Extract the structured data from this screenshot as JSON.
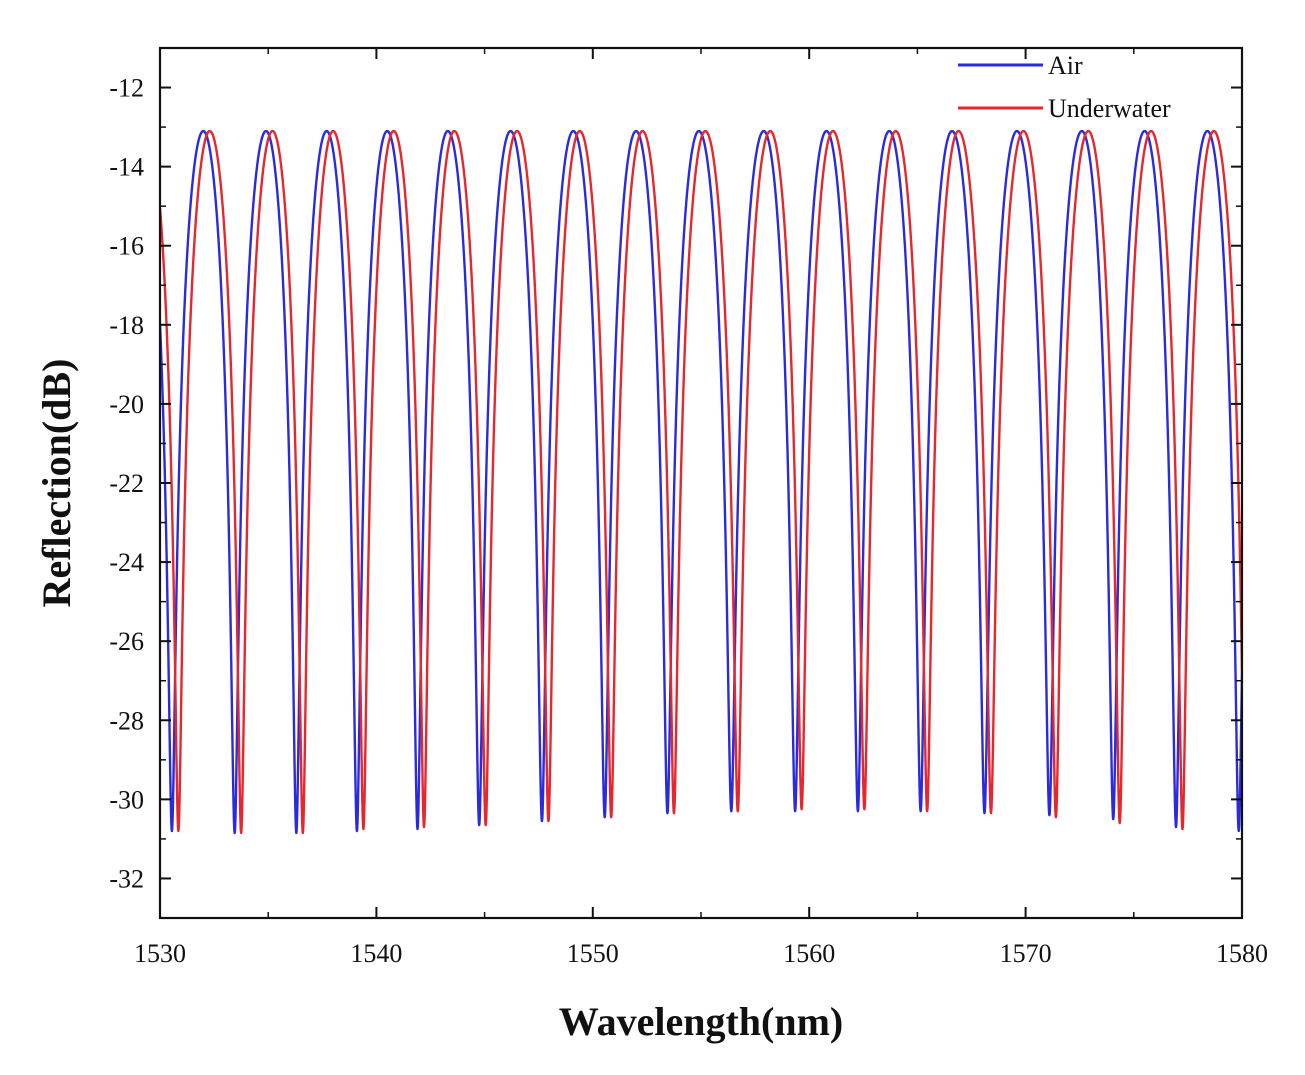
{
  "chart_data": {
    "type": "line",
    "title": "",
    "xlabel": "Wavelength(nm)",
    "ylabel": "Reflection(dB)",
    "xlim": [
      1530,
      1580
    ],
    "ylim": [
      -33,
      -11
    ],
    "xticks": [
      1530,
      1540,
      1550,
      1560,
      1570,
      1580
    ],
    "yticks": [
      -12,
      -14,
      -16,
      -18,
      -20,
      -22,
      -24,
      -26,
      -28,
      -30,
      -32
    ],
    "grid": false,
    "legend_position": "top-right",
    "curve_model": {
      "peak_db": -13.1,
      "dip_db": -30.8,
      "fsr_nm": 2.9
    },
    "series": [
      {
        "name": "Air",
        "color": "#2a2ae0",
        "dips_x": [
          1532.0,
          1534.9,
          1537.7,
          1540.5,
          1543.3,
          1546.2,
          1549.1,
          1552.0,
          1554.9,
          1557.9,
          1560.8,
          1563.7,
          1566.6,
          1569.6,
          1572.6,
          1575.5,
          1578.4
        ],
        "dips_y": [
          -30.8,
          -30.9,
          -30.8,
          -30.8,
          -30.7,
          -30.6,
          -30.5,
          -30.4,
          -30.3,
          -30.3,
          -30.3,
          -30.3,
          -30.3,
          -30.4,
          -30.4,
          -30.6,
          -30.8
        ]
      },
      {
        "name": "Underwater",
        "color": "#e8262c",
        "dips_x": [
          1532.3,
          1535.2,
          1538.0,
          1540.8,
          1543.6,
          1546.5,
          1549.4,
          1552.3,
          1555.2,
          1558.2,
          1561.1,
          1564.0,
          1566.9,
          1569.9,
          1572.9,
          1575.8,
          1578.7
        ],
        "dips_y": [
          -30.8,
          -30.9,
          -30.8,
          -30.7,
          -30.7,
          -30.6,
          -30.5,
          -30.4,
          -30.3,
          -30.3,
          -30.2,
          -30.3,
          -30.3,
          -30.4,
          -30.5,
          -30.7,
          -30.8
        ]
      }
    ]
  }
}
